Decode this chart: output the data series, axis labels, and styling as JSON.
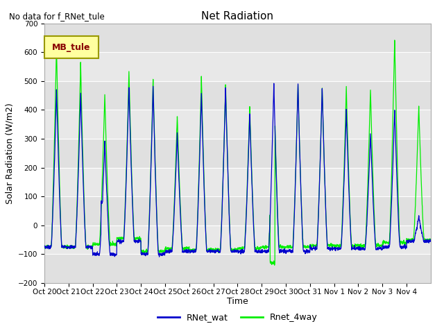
{
  "title": "Net Radiation",
  "subtitle": "No data for f_RNet_tule",
  "ylabel": "Solar Radiation (W/m2)",
  "xlabel": "Time",
  "ylim": [
    -200,
    700
  ],
  "yticks": [
    -200,
    -100,
    0,
    100,
    200,
    300,
    400,
    500,
    600,
    700
  ],
  "xtick_labels": [
    "Oct 20",
    "Oct 21",
    "Oct 22",
    "Oct 23",
    "Oct 24",
    "Oct 25",
    "Oct 26",
    "Oct 27",
    "Oct 28",
    "Oct 29",
    "Oct 30",
    "Oct 31",
    "Nov 1",
    "Nov 2",
    "Nov 3",
    "Nov 4"
  ],
  "legend_box_label": "MB_tule",
  "legend_box_facecolor": "#FFFFA0",
  "legend_box_edgecolor": "#999900",
  "legend_box_textcolor": "#880000",
  "line1_color": "#0000CC",
  "line1_label": "RNet_wat",
  "line2_color": "#00EE00",
  "line2_label": "Rnet_4way",
  "background_color": "#ffffff",
  "plot_bg_color": "#f0f0f0",
  "band_light": "#e8e8e8",
  "band_dark": "#d8d8d8",
  "days_count": 16,
  "points_per_day": 144,
  "night_val_wat": -75,
  "night_val_4way": -75
}
